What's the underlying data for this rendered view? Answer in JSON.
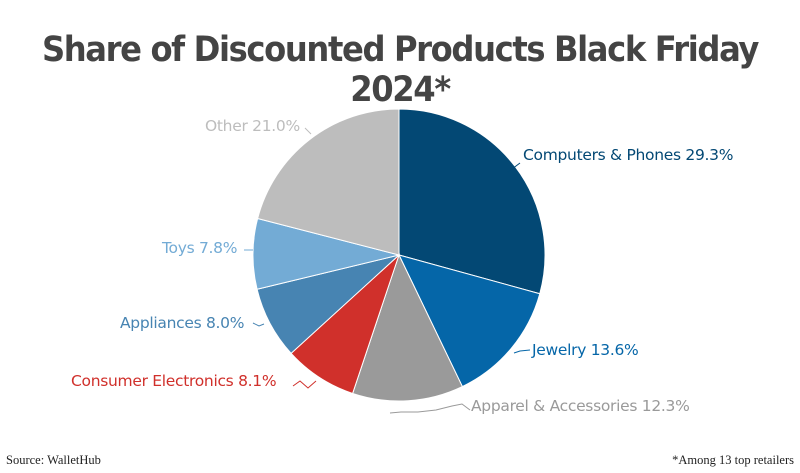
{
  "title": "Share of Discounted Products Black Friday 2024*",
  "footer": {
    "source": "Source: WalletHub",
    "note": "*Among 13 top retailers"
  },
  "labels": {
    "computers": "Computers & Phones 29.3%",
    "jewelry": "Jewelry 13.6%",
    "apparel": "Apparel & Accessories 12.3%",
    "consumer_electronics": "Consumer Electronics 8.1%",
    "appliances": "Appliances 8.0%",
    "toys": "Toys 7.8%",
    "other": "Other 21.0%"
  },
  "colors": {
    "computers": "#034874",
    "jewelry": "#0566a8",
    "apparel": "#9a9a9a",
    "consumer_electronics": "#d0302b",
    "appliances": "#4784b2",
    "toys": "#73abd5",
    "other": "#bdbdbd"
  },
  "chart_data": {
    "type": "pie",
    "title": "Share of Discounted Products Black Friday 2024*",
    "categories": [
      "Computers & Phones",
      "Jewelry",
      "Apparel & Accessories",
      "Consumer Electronics",
      "Appliances",
      "Toys",
      "Other"
    ],
    "values": [
      29.3,
      13.6,
      12.3,
      8.1,
      8.0,
      7.8,
      21.0
    ],
    "unit": "%",
    "start_angle": "12 o'clock, clockwise",
    "annotations": [
      "Source: WalletHub",
      "*Among 13 top retailers"
    ],
    "legend": "none (direct labels)"
  }
}
